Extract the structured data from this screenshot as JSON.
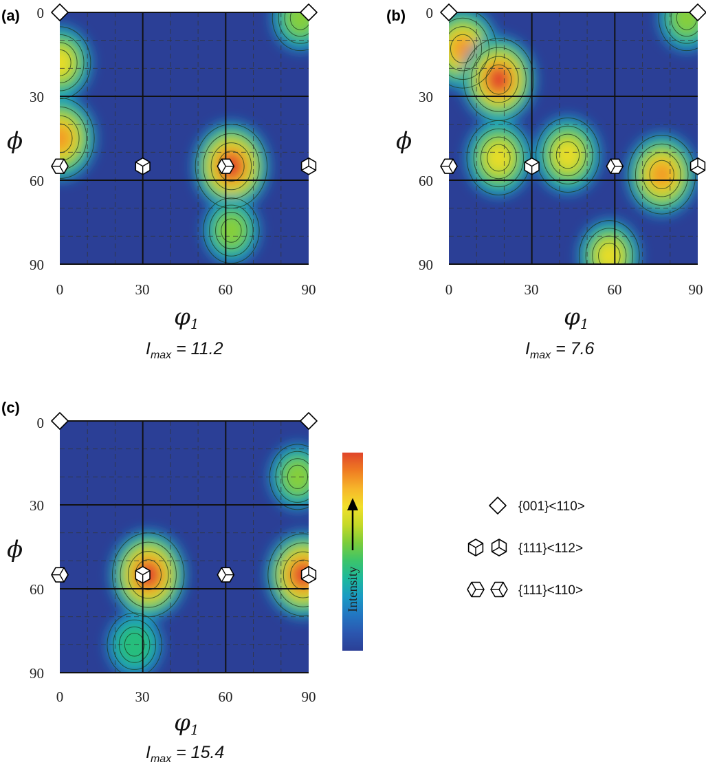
{
  "chart_data": [
    {
      "type": "heatmap",
      "panel": "(a)",
      "xlabel": "φ",
      "xlabel_sub": "1",
      "ylabel": "ϕ",
      "xlim": [
        0,
        90
      ],
      "ylim": [
        90,
        0
      ],
      "x_ticks": [
        "0",
        "30",
        "60",
        "90"
      ],
      "y_ticks": [
        "0",
        "30",
        "60",
        "90"
      ],
      "imax_prefix": "I",
      "imax_sub": "max",
      "imax_text": " = 11.2",
      "imax": 11.2,
      "peaks": [
        {
          "x": 0,
          "y": 18,
          "intensity": 0.65
        },
        {
          "x": 0,
          "y": 45,
          "intensity": 0.9
        },
        {
          "x": 62,
          "y": 55,
          "intensity": 1.0
        },
        {
          "x": 62,
          "y": 78,
          "intensity": 0.45
        },
        {
          "x": 87,
          "y": 2,
          "intensity": 0.45
        }
      ],
      "markers": [
        {
          "x": 0,
          "y": 0,
          "shape": "diamond",
          "orientation": "{001}<110>"
        },
        {
          "x": 90,
          "y": 0,
          "shape": "diamond",
          "orientation": "{001}<110>"
        },
        {
          "x": 0,
          "y": 55,
          "shape": "hex-b",
          "orientation": "{111}<110>"
        },
        {
          "x": 30,
          "y": 55,
          "shape": "cube-a",
          "orientation": "{111}<112>"
        },
        {
          "x": 60,
          "y": 55,
          "shape": "hex-a",
          "orientation": "{111}<110>"
        },
        {
          "x": 90,
          "y": 55,
          "shape": "cube-b",
          "orientation": "{111}<112>"
        }
      ]
    },
    {
      "type": "heatmap",
      "panel": "(b)",
      "xlabel": "φ",
      "xlabel_sub": "1",
      "ylabel": "ϕ",
      "xlim": [
        0,
        90
      ],
      "ylim": [
        90,
        0
      ],
      "x_ticks": [
        "0",
        "30",
        "60",
        "90"
      ],
      "y_ticks": [
        "0",
        "30",
        "60",
        "90"
      ],
      "imax_prefix": "I",
      "imax_sub": "max",
      "imax_text": " = 7.6",
      "imax": 7.6,
      "peaks": [
        {
          "x": 5,
          "y": 13,
          "intensity": 0.85
        },
        {
          "x": 18,
          "y": 24,
          "intensity": 0.95
        },
        {
          "x": 18,
          "y": 52,
          "intensity": 0.72
        },
        {
          "x": 43,
          "y": 51,
          "intensity": 0.72
        },
        {
          "x": 77,
          "y": 58,
          "intensity": 0.85
        },
        {
          "x": 58,
          "y": 87,
          "intensity": 0.6
        },
        {
          "x": 86,
          "y": 2,
          "intensity": 0.45
        }
      ],
      "markers": [
        {
          "x": 0,
          "y": 0,
          "shape": "diamond",
          "orientation": "{001}<110>"
        },
        {
          "x": 90,
          "y": 0,
          "shape": "diamond",
          "orientation": "{001}<110>"
        },
        {
          "x": 0,
          "y": 55,
          "shape": "hex-b",
          "orientation": "{111}<110>"
        },
        {
          "x": 30,
          "y": 55,
          "shape": "cube-a",
          "orientation": "{111}<112>"
        },
        {
          "x": 60,
          "y": 55,
          "shape": "hex-a",
          "orientation": "{111}<110>"
        },
        {
          "x": 90,
          "y": 55,
          "shape": "cube-b",
          "orientation": "{111}<112>"
        }
      ]
    },
    {
      "type": "heatmap",
      "panel": "(c)",
      "xlabel": "φ",
      "xlabel_sub": "1",
      "ylabel": "ϕ",
      "xlim": [
        0,
        90
      ],
      "ylim": [
        90,
        0
      ],
      "x_ticks": [
        "0",
        "30",
        "60",
        "90"
      ],
      "y_ticks": [
        "0",
        "30",
        "60",
        "90"
      ],
      "imax_prefix": "I",
      "imax_sub": "max",
      "imax_text": " = 15.4",
      "imax": 15.4,
      "peaks": [
        {
          "x": 32,
          "y": 55,
          "intensity": 1.0
        },
        {
          "x": 88,
          "y": 55,
          "intensity": 0.95
        },
        {
          "x": 86,
          "y": 20,
          "intensity": 0.45
        },
        {
          "x": 27,
          "y": 80,
          "intensity": 0.4
        }
      ],
      "markers": [
        {
          "x": 0,
          "y": 0,
          "shape": "diamond",
          "orientation": "{001}<110>"
        },
        {
          "x": 90,
          "y": 0,
          "shape": "diamond",
          "orientation": "{001}<110>"
        },
        {
          "x": 0,
          "y": 55,
          "shape": "hex-b",
          "orientation": "{111}<110>"
        },
        {
          "x": 30,
          "y": 55,
          "shape": "cube-a",
          "orientation": "{111}<112>"
        },
        {
          "x": 60,
          "y": 55,
          "shape": "hex-a",
          "orientation": "{111}<110>"
        },
        {
          "x": 90,
          "y": 55,
          "shape": "cube-b",
          "orientation": "{111}<112>"
        }
      ]
    }
  ],
  "colorbar": {
    "label": "Intensity",
    "colors": [
      "#2b3f96",
      "#2b57b0",
      "#2277c2",
      "#1a9bc4",
      "#1db89d",
      "#3cc46a",
      "#7ccd3b",
      "#c5d928",
      "#f2e02a",
      "#f7b62a",
      "#ef7c22",
      "#e0452a"
    ]
  },
  "legend": [
    {
      "icons": [
        "diamond"
      ],
      "label": "{001}<110>"
    },
    {
      "icons": [
        "cube-a",
        "cube-b"
      ],
      "label": "{111}<112>"
    },
    {
      "icons": [
        "hex-a",
        "hex-b"
      ],
      "label": "{111}<110>"
    }
  ]
}
